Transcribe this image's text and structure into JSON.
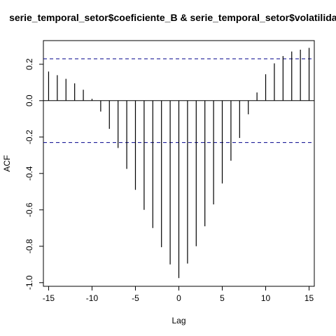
{
  "chart_data": {
    "type": "bar",
    "title": "serie_temporal_setor$coeficiente_B & serie_temporal_setor$volatilidade",
    "xlabel": "Lag",
    "ylabel": "ACF",
    "x": [
      -15,
      -14,
      -13,
      -12,
      -11,
      -10,
      -9,
      -8,
      -7,
      -6,
      -5,
      -4,
      -3,
      -2,
      -1,
      0,
      1,
      2,
      3,
      4,
      5,
      6,
      7,
      8,
      9,
      10,
      11,
      12,
      13,
      14,
      15
    ],
    "values": [
      0.16,
      0.14,
      0.12,
      0.095,
      0.06,
      0.01,
      -0.06,
      -0.155,
      -0.26,
      -0.375,
      -0.49,
      -0.6,
      -0.7,
      -0.805,
      -0.9,
      -0.975,
      -0.895,
      -0.8,
      -0.69,
      -0.57,
      -0.455,
      -0.33,
      -0.205,
      -0.075,
      0.045,
      0.145,
      0.205,
      0.245,
      0.27,
      0.28,
      0.29
    ],
    "conf_limit": 0.23,
    "xlim": [
      -15.6,
      15.6
    ],
    "ylim": [
      -1.02,
      0.33
    ],
    "xticks": [
      "-15",
      "-10",
      "-5",
      "0",
      "5",
      "10",
      "15"
    ],
    "yticks": [
      "-1.0",
      "-0.8",
      "-0.6",
      "-0.4",
      "-0.2",
      "0.0",
      "0.2"
    ],
    "colors": {
      "bars": "#000000",
      "conf_lines": "#00008b",
      "zero_line": "#000000"
    }
  }
}
